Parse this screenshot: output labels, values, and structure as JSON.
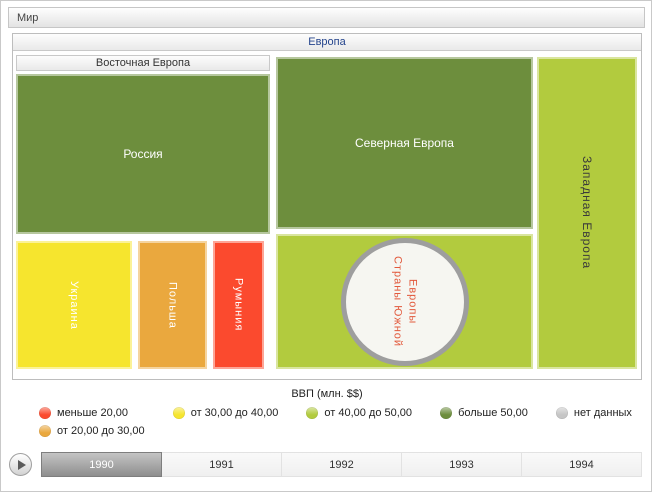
{
  "breadcrumb": {
    "world_label": "Мир"
  },
  "treemap": {
    "europe": {
      "label": "Европа"
    },
    "eastern_europe": {
      "label": "Восточная Европа"
    },
    "nodes": {
      "russia": {
        "label": "Россия",
        "color": "#6d8e3d"
      },
      "ukraine": {
        "label": "Украина",
        "color": "#f6e52e"
      },
      "poland": {
        "label": "Польша",
        "color": "#eaa83e"
      },
      "romania": {
        "label": "Румыния",
        "color": "#fb4a2e"
      },
      "northern_europe": {
        "label": "Северная Европа",
        "color": "#6d8e3d"
      },
      "southern_europe": {
        "label": "Страны Южной Европы",
        "color": "#b2cb3e",
        "circle_color": "#f6f6f1",
        "text_color": "#e2593c"
      },
      "western_europe": {
        "label": "Западная Европа",
        "color": "#b2cb3e"
      }
    }
  },
  "chart_data": {
    "type": "treemap",
    "title": "ВВП (млн. $$)",
    "root": "Мир",
    "year": "1990",
    "legend_position": "bottom",
    "groups": [
      {
        "name": "Европа",
        "children": [
          {
            "group": "Восточная Европа",
            "children": [
              {
                "name": "Россия",
                "gdp_category": "больше 50,00"
              },
              {
                "name": "Украина",
                "gdp_category": "от 30,00 до 40,00"
              },
              {
                "name": "Польша",
                "gdp_category": "от 20,00 до 30,00"
              },
              {
                "name": "Румыния",
                "gdp_category": "меньше 20,00"
              }
            ]
          },
          {
            "name": "Северная Европа",
            "gdp_category": "больше 50,00"
          },
          {
            "name": "Страны Южной Европы",
            "gdp_category": "от 40,00 до 50,00"
          },
          {
            "name": "Западная Европа",
            "gdp_category": "от 40,00 до 50,00"
          }
        ]
      }
    ]
  },
  "legend": {
    "title": "ВВП (млн. $$)",
    "items": [
      {
        "label": "меньше 20,00",
        "color": "#fb4a2e"
      },
      {
        "label": "от 20,00 до 30,00",
        "color": "#eaa83e"
      },
      {
        "label": "от 30,00 до 40,00",
        "color": "#f6e52e"
      },
      {
        "label": "от 40,00 до 50,00",
        "color": "#b2cb3e"
      },
      {
        "label": "больше 50,00",
        "color": "#6d8e3d"
      },
      {
        "label": "нет данных",
        "color": "#c6c6c6"
      }
    ]
  },
  "timeline": {
    "years": [
      "1990",
      "1991",
      "1992",
      "1993",
      "1994"
    ],
    "selected_year": "1990"
  }
}
